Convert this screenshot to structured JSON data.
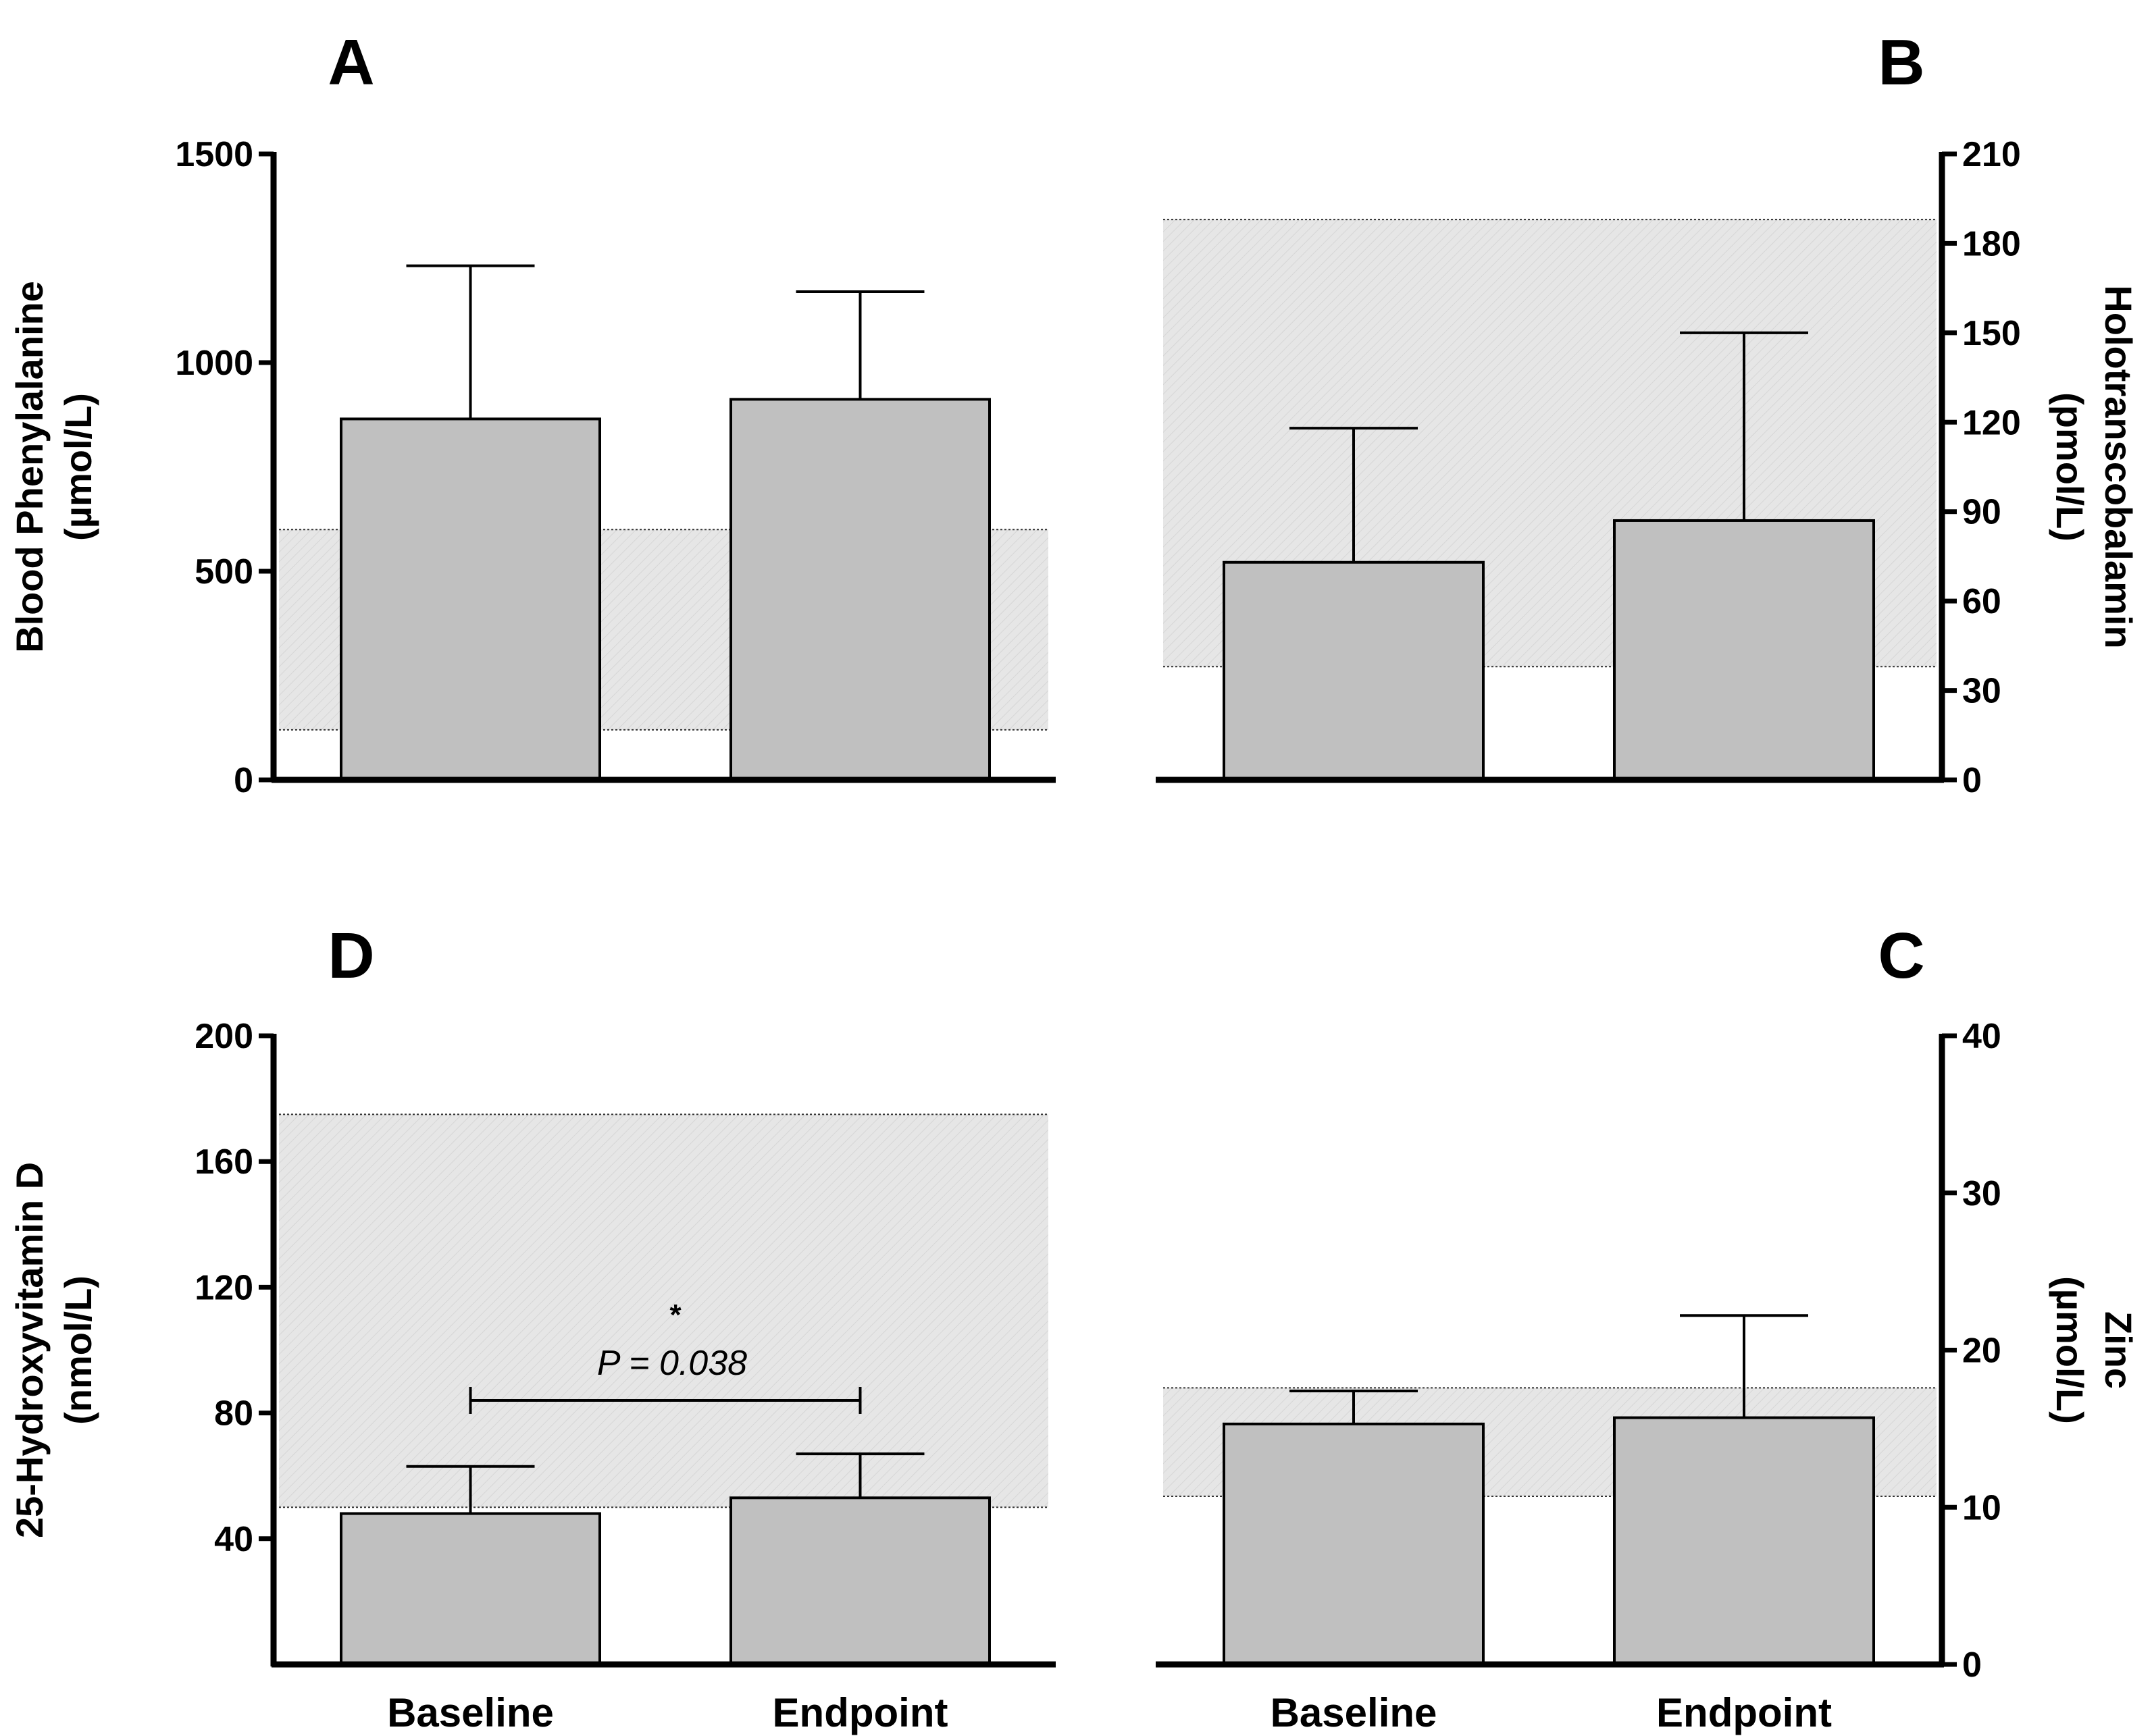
{
  "colors": {
    "bar_fill": "#c0c0c0",
    "bar_stroke": "#000000",
    "band_fill": "#e6e6e6",
    "axis": "#000000"
  },
  "chart_data": [
    {
      "id": "A",
      "type": "bar",
      "panel_label": "A",
      "axis_side": "left",
      "categories": [
        "Baseline",
        "Endpoint"
      ],
      "values": [
        865,
        912
      ],
      "errors_upper": [
        1232,
        1170
      ],
      "ylim": [
        0,
        1500
      ],
      "yticks": [
        0,
        500,
        1000,
        1500
      ],
      "ylabel_lines": [
        "Blood Phenylalanine",
        "(µmol/L)"
      ],
      "reference_range": [
        120,
        600
      ],
      "show_xlabels": false
    },
    {
      "id": "B",
      "type": "bar",
      "panel_label": "B",
      "axis_side": "right",
      "categories": [
        "Baseline",
        "Endpoint"
      ],
      "values": [
        73,
        87
      ],
      "errors_upper": [
        118,
        150
      ],
      "ylim": [
        0,
        210
      ],
      "yticks": [
        0,
        30,
        60,
        90,
        120,
        150,
        180,
        210
      ],
      "ylabel_lines": [
        "Holotranscobalamin",
        "(pmol/L)"
      ],
      "reference_range": [
        38,
        188
      ],
      "show_xlabels": false
    },
    {
      "id": "D",
      "type": "bar",
      "panel_label": "D",
      "axis_side": "left",
      "categories": [
        "Baseline",
        "Endpoint"
      ],
      "values": [
        48,
        53
      ],
      "errors_upper": [
        63,
        67
      ],
      "ylim": [
        0,
        200
      ],
      "yticks": [
        40,
        80,
        120,
        160,
        200
      ],
      "ylabel_lines": [
        "25-Hydroxyvitamin D",
        "(nmol/L)"
      ],
      "reference_range": [
        50,
        175
      ],
      "show_xlabels": true,
      "significance": {
        "star": "*",
        "text": "P = 0.038",
        "y": 84
      }
    },
    {
      "id": "C",
      "type": "bar",
      "panel_label": "C",
      "axis_side": "right",
      "categories": [
        "Baseline",
        "Endpoint"
      ],
      "values": [
        15.3,
        15.7
      ],
      "errors_upper": [
        17.4,
        22.2
      ],
      "ylim": [
        0,
        40
      ],
      "yticks": [
        0,
        10,
        20,
        30,
        40
      ],
      "ylabel_lines": [
        "Zinc",
        "(µmol/L)"
      ],
      "reference_range": [
        10.7,
        17.6
      ],
      "show_xlabels": true
    }
  ]
}
